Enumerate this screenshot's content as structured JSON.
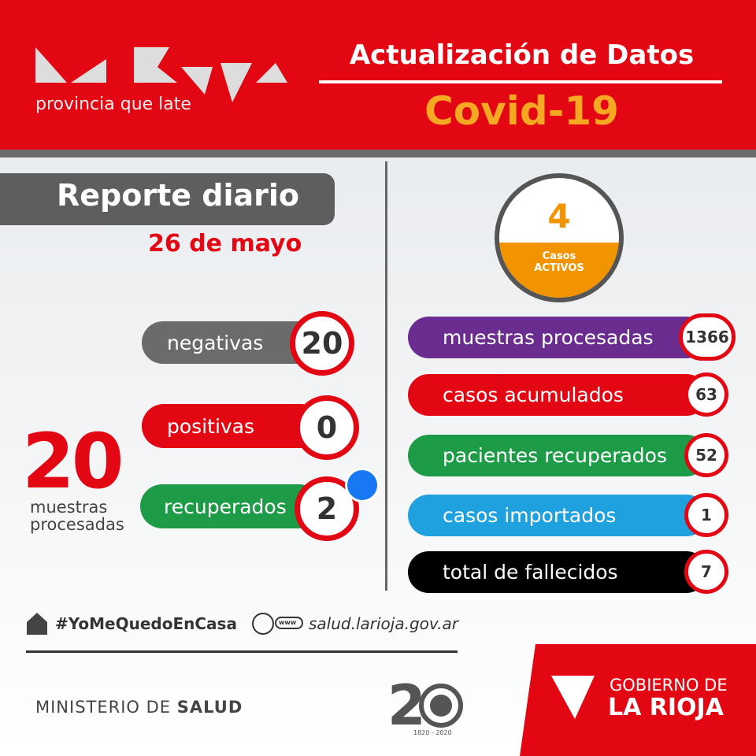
{
  "header": {
    "tagline": "provincia que late",
    "title": "Actualización de Datos",
    "subtitle": "Covid-19"
  },
  "report": {
    "title": "Reporte diario",
    "date": "26 de mayo",
    "items": [
      {
        "label": "negativas",
        "value": "20"
      },
      {
        "label": "positivas",
        "value": "0"
      },
      {
        "label": "recuperados",
        "value": "2"
      }
    ],
    "total": {
      "value": "20",
      "label_line1": "muestras",
      "label_line2": "procesadas"
    }
  },
  "active": {
    "value": "4",
    "label_line1": "Casos",
    "label_line2": "ACTIVOS"
  },
  "summary": [
    {
      "label": "muestras procesadas",
      "value": "1366"
    },
    {
      "label": "casos acumulados",
      "value": "63"
    },
    {
      "label": "pacientes recuperados",
      "value": "52"
    },
    {
      "label": "casos importados",
      "value": "1"
    },
    {
      "label": "total de fallecidos",
      "value": "7"
    }
  ],
  "footer": {
    "hashtag": "#YoMeQuedoEnCasa",
    "www": "www",
    "website": "salud.larioja.gov.ar",
    "ministry": "MINISTERIO DE",
    "ministry_bold": "SALUD",
    "years": "1820 - 2020",
    "gov_line1": "GOBIERNO DE",
    "gov_line2": "LA RIOJA"
  }
}
